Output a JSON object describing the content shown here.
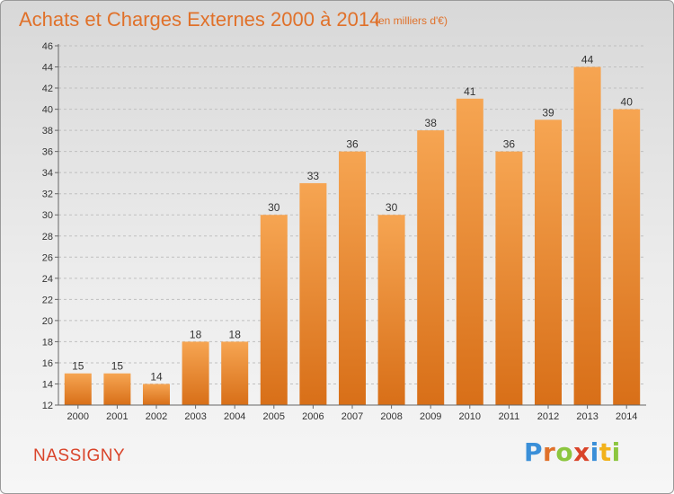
{
  "header": {
    "title": "Achats et Charges Externes 2000 à 2014",
    "unit": "(en milliers d'€)"
  },
  "footer": {
    "town": "NASSIGNY",
    "brand_letters": [
      {
        "char": "P",
        "color": "#3a8fd8"
      },
      {
        "char": "r",
        "color": "#e0712a"
      },
      {
        "char": "o",
        "color": "#8cc63f"
      },
      {
        "char": "x",
        "color": "#d9442a"
      },
      {
        "char": "i",
        "color": "#3a8fd8"
      },
      {
        "char": "t",
        "color": "#f2b21b"
      },
      {
        "char": "i",
        "color": "#8cc63f"
      }
    ]
  },
  "colors": {
    "bar_light": "#f6a552",
    "bar_dark": "#d86f18",
    "grid": "#bfbfbf",
    "title": "#e0712a",
    "town": "#d9442a"
  },
  "chart_data": {
    "type": "bar",
    "title": "Achats et Charges Externes 2000 à 2014",
    "unit": "(en milliers d'€)",
    "categories": [
      "2000",
      "2001",
      "2002",
      "2003",
      "2004",
      "2005",
      "2006",
      "2007",
      "2008",
      "2009",
      "2010",
      "2011",
      "2012",
      "2013",
      "2014"
    ],
    "values": [
      15,
      15,
      14,
      18,
      18,
      30,
      33,
      36,
      30,
      38,
      41,
      36,
      39,
      44,
      40
    ],
    "ylim": [
      12,
      46
    ],
    "yticks": [
      12,
      14,
      16,
      18,
      20,
      22,
      24,
      26,
      28,
      30,
      32,
      34,
      36,
      38,
      40,
      42,
      44,
      46
    ],
    "grid": true,
    "data_labels": true
  }
}
